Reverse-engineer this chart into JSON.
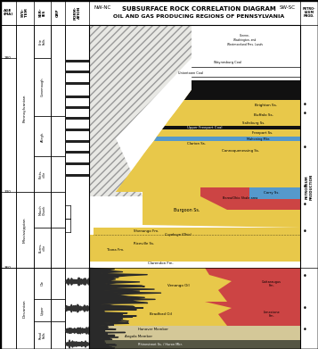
{
  "title_line1": "SUBSURFACE ROCK CORRELATION DIAGRAM",
  "title_line2": "OIL AND GAS PRODUCING REGIONS OF PENNSYLVANIA",
  "nw_label": "NW-NC",
  "sw_label": "SW-SC",
  "yellow": "#e8c84a",
  "red": "#cc4444",
  "blue": "#5599cc",
  "black": "#111111",
  "white": "#ffffff",
  "hatch_bg": "#e8e8e4",
  "tan": "#d4c898",
  "gray_shale": "#555544"
}
